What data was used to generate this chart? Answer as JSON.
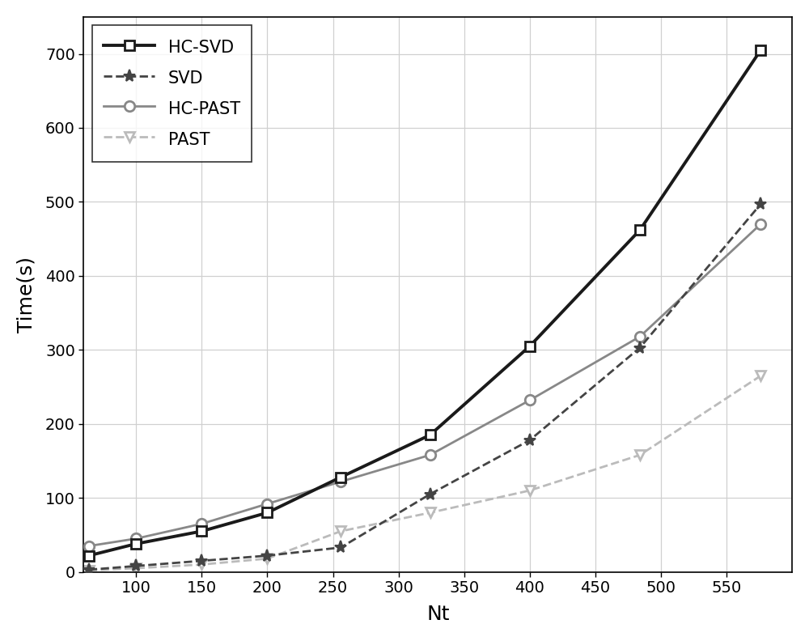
{
  "x": [
    64,
    100,
    150,
    200,
    256,
    324,
    400,
    484,
    576
  ],
  "HC_SVD": [
    22,
    38,
    55,
    80,
    128,
    185,
    305,
    462,
    705
  ],
  "SVD": [
    3,
    8,
    15,
    22,
    33,
    105,
    178,
    303,
    497
  ],
  "HC_PAST": [
    35,
    45,
    65,
    92,
    122,
    158,
    232,
    318,
    470
  ],
  "PAST": [
    2,
    5,
    10,
    18,
    55,
    80,
    110,
    158,
    265
  ],
  "HC_SVD_color": "#1a1a1a",
  "SVD_color": "#444444",
  "HC_PAST_color": "#888888",
  "PAST_color": "#bbbbbb",
  "xlabel": "Nt",
  "ylabel": "Time(s)",
  "xlim": [
    60,
    600
  ],
  "ylim": [
    0,
    750
  ],
  "yticks": [
    0,
    100,
    200,
    300,
    400,
    500,
    600,
    700
  ],
  "xticks": [
    100,
    150,
    200,
    250,
    300,
    350,
    400,
    450,
    500,
    550
  ],
  "legend_labels": [
    "HC-SVD",
    "SVD",
    "HC-PAST",
    "PAST"
  ],
  "grid_color": "#d0d0d0",
  "background_color": "#ffffff",
  "linewidth": 2.0,
  "marker_size": 9
}
